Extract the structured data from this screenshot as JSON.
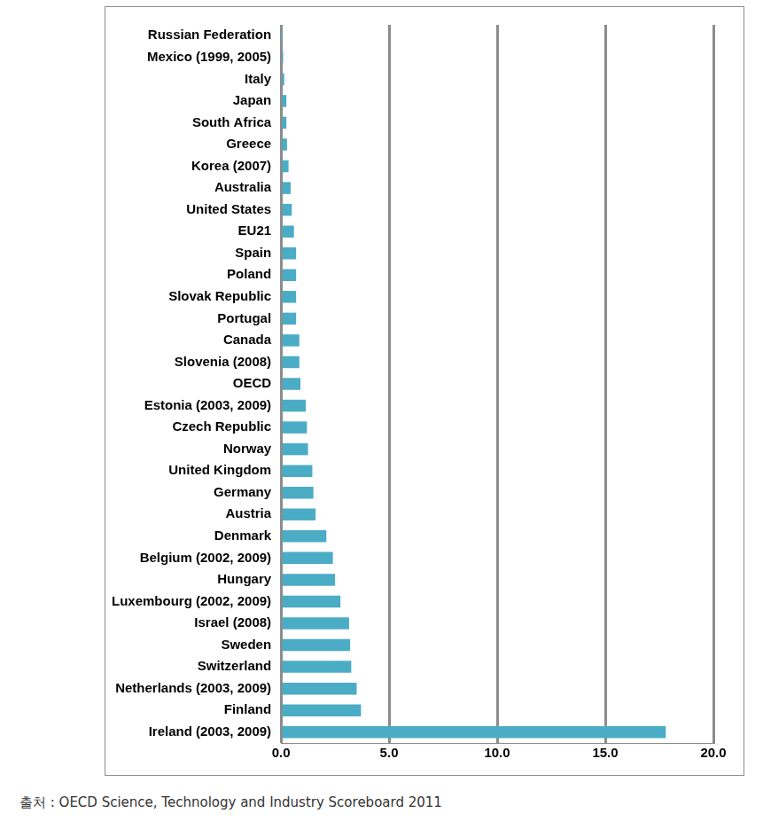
{
  "chart_data": {
    "type": "bar",
    "orientation": "horizontal",
    "categories": [
      "Russian Federation",
      "Mexico (1999, 2005)",
      "Italy",
      "Japan",
      "South Africa",
      "Greece",
      "Korea (2007)",
      "Australia",
      "United States",
      "EU21",
      "Spain",
      "Poland",
      "Slovak Republic",
      "Portugal",
      "Canada",
      "Slovenia (2008)",
      "OECD",
      "Estonia (2003, 2009)",
      "Czech Republic",
      "Norway",
      "United Kingdom",
      "Germany",
      "Austria",
      "Denmark",
      "Belgium (2002, 2009)",
      "Hungary",
      "Luxembourg (2002, 2009)",
      "Israel (2008)",
      "Sweden",
      "Switzerland",
      "Netherlands (2003, 2009)",
      "Finland",
      "Ireland (2003, 2009)"
    ],
    "values": [
      0.02,
      0.1,
      0.15,
      0.25,
      0.25,
      0.28,
      0.35,
      0.45,
      0.5,
      0.6,
      0.7,
      0.7,
      0.7,
      0.7,
      0.85,
      0.85,
      0.9,
      1.15,
      1.2,
      1.25,
      1.45,
      1.5,
      1.6,
      2.1,
      2.4,
      2.5,
      2.75,
      3.15,
      3.2,
      3.25,
      3.5,
      3.7,
      17.8
    ],
    "color": "#4bacc6",
    "xlim": [
      0,
      20
    ],
    "xticks": [
      {
        "value": 0,
        "label": "0.0"
      },
      {
        "value": 5,
        "label": "5.0"
      },
      {
        "value": 10,
        "label": "10.0"
      },
      {
        "value": 15,
        "label": "15.0"
      },
      {
        "value": 20,
        "label": "20.0"
      }
    ],
    "grid": true,
    "source": "출처 : OECD Science, Technology and Industry Scoreboard 2011"
  }
}
